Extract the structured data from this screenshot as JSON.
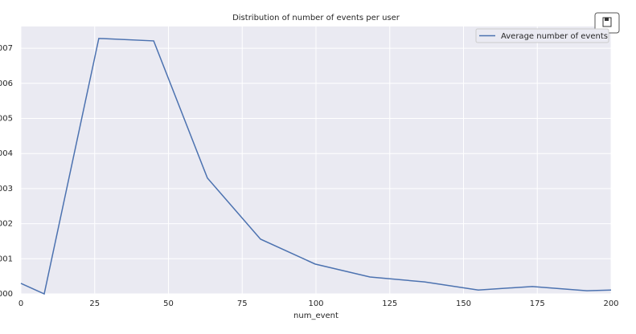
{
  "chart_data": {
    "type": "line",
    "title": "Distribution of number of events per user",
    "x_label": "num_event",
    "x": [
      0,
      7.9,
      26.4,
      45.0,
      63.2,
      81.2,
      99.7,
      118.3,
      136.8,
      155.0,
      173.3,
      191.8,
      200
    ],
    "series": [
      {
        "name": "Average number of events",
        "color": "#4c72b0",
        "values": [
          0.3,
          0.0,
          7.28,
          7.21,
          3.3,
          1.56,
          0.85,
          0.48,
          0.34,
          0.11,
          0.21,
          0.09,
          0.11
        ]
      }
    ],
    "xlim": [
      0,
      200
    ],
    "xticks": [
      0,
      25,
      50,
      75,
      100,
      125,
      150,
      175,
      200
    ],
    "ylim": [
      0,
      7.62
    ],
    "yticks": [
      {
        "value": 0,
        "label": "000"
      },
      {
        "value": 1,
        "label": "001"
      },
      {
        "value": 2,
        "label": "002"
      },
      {
        "value": 3,
        "label": "003"
      },
      {
        "value": 4,
        "label": "004"
      },
      {
        "value": 5,
        "label": "005"
      },
      {
        "value": 6,
        "label": "006"
      },
      {
        "value": 7,
        "label": "007"
      }
    ],
    "grid": true,
    "legend": "upper right"
  }
}
